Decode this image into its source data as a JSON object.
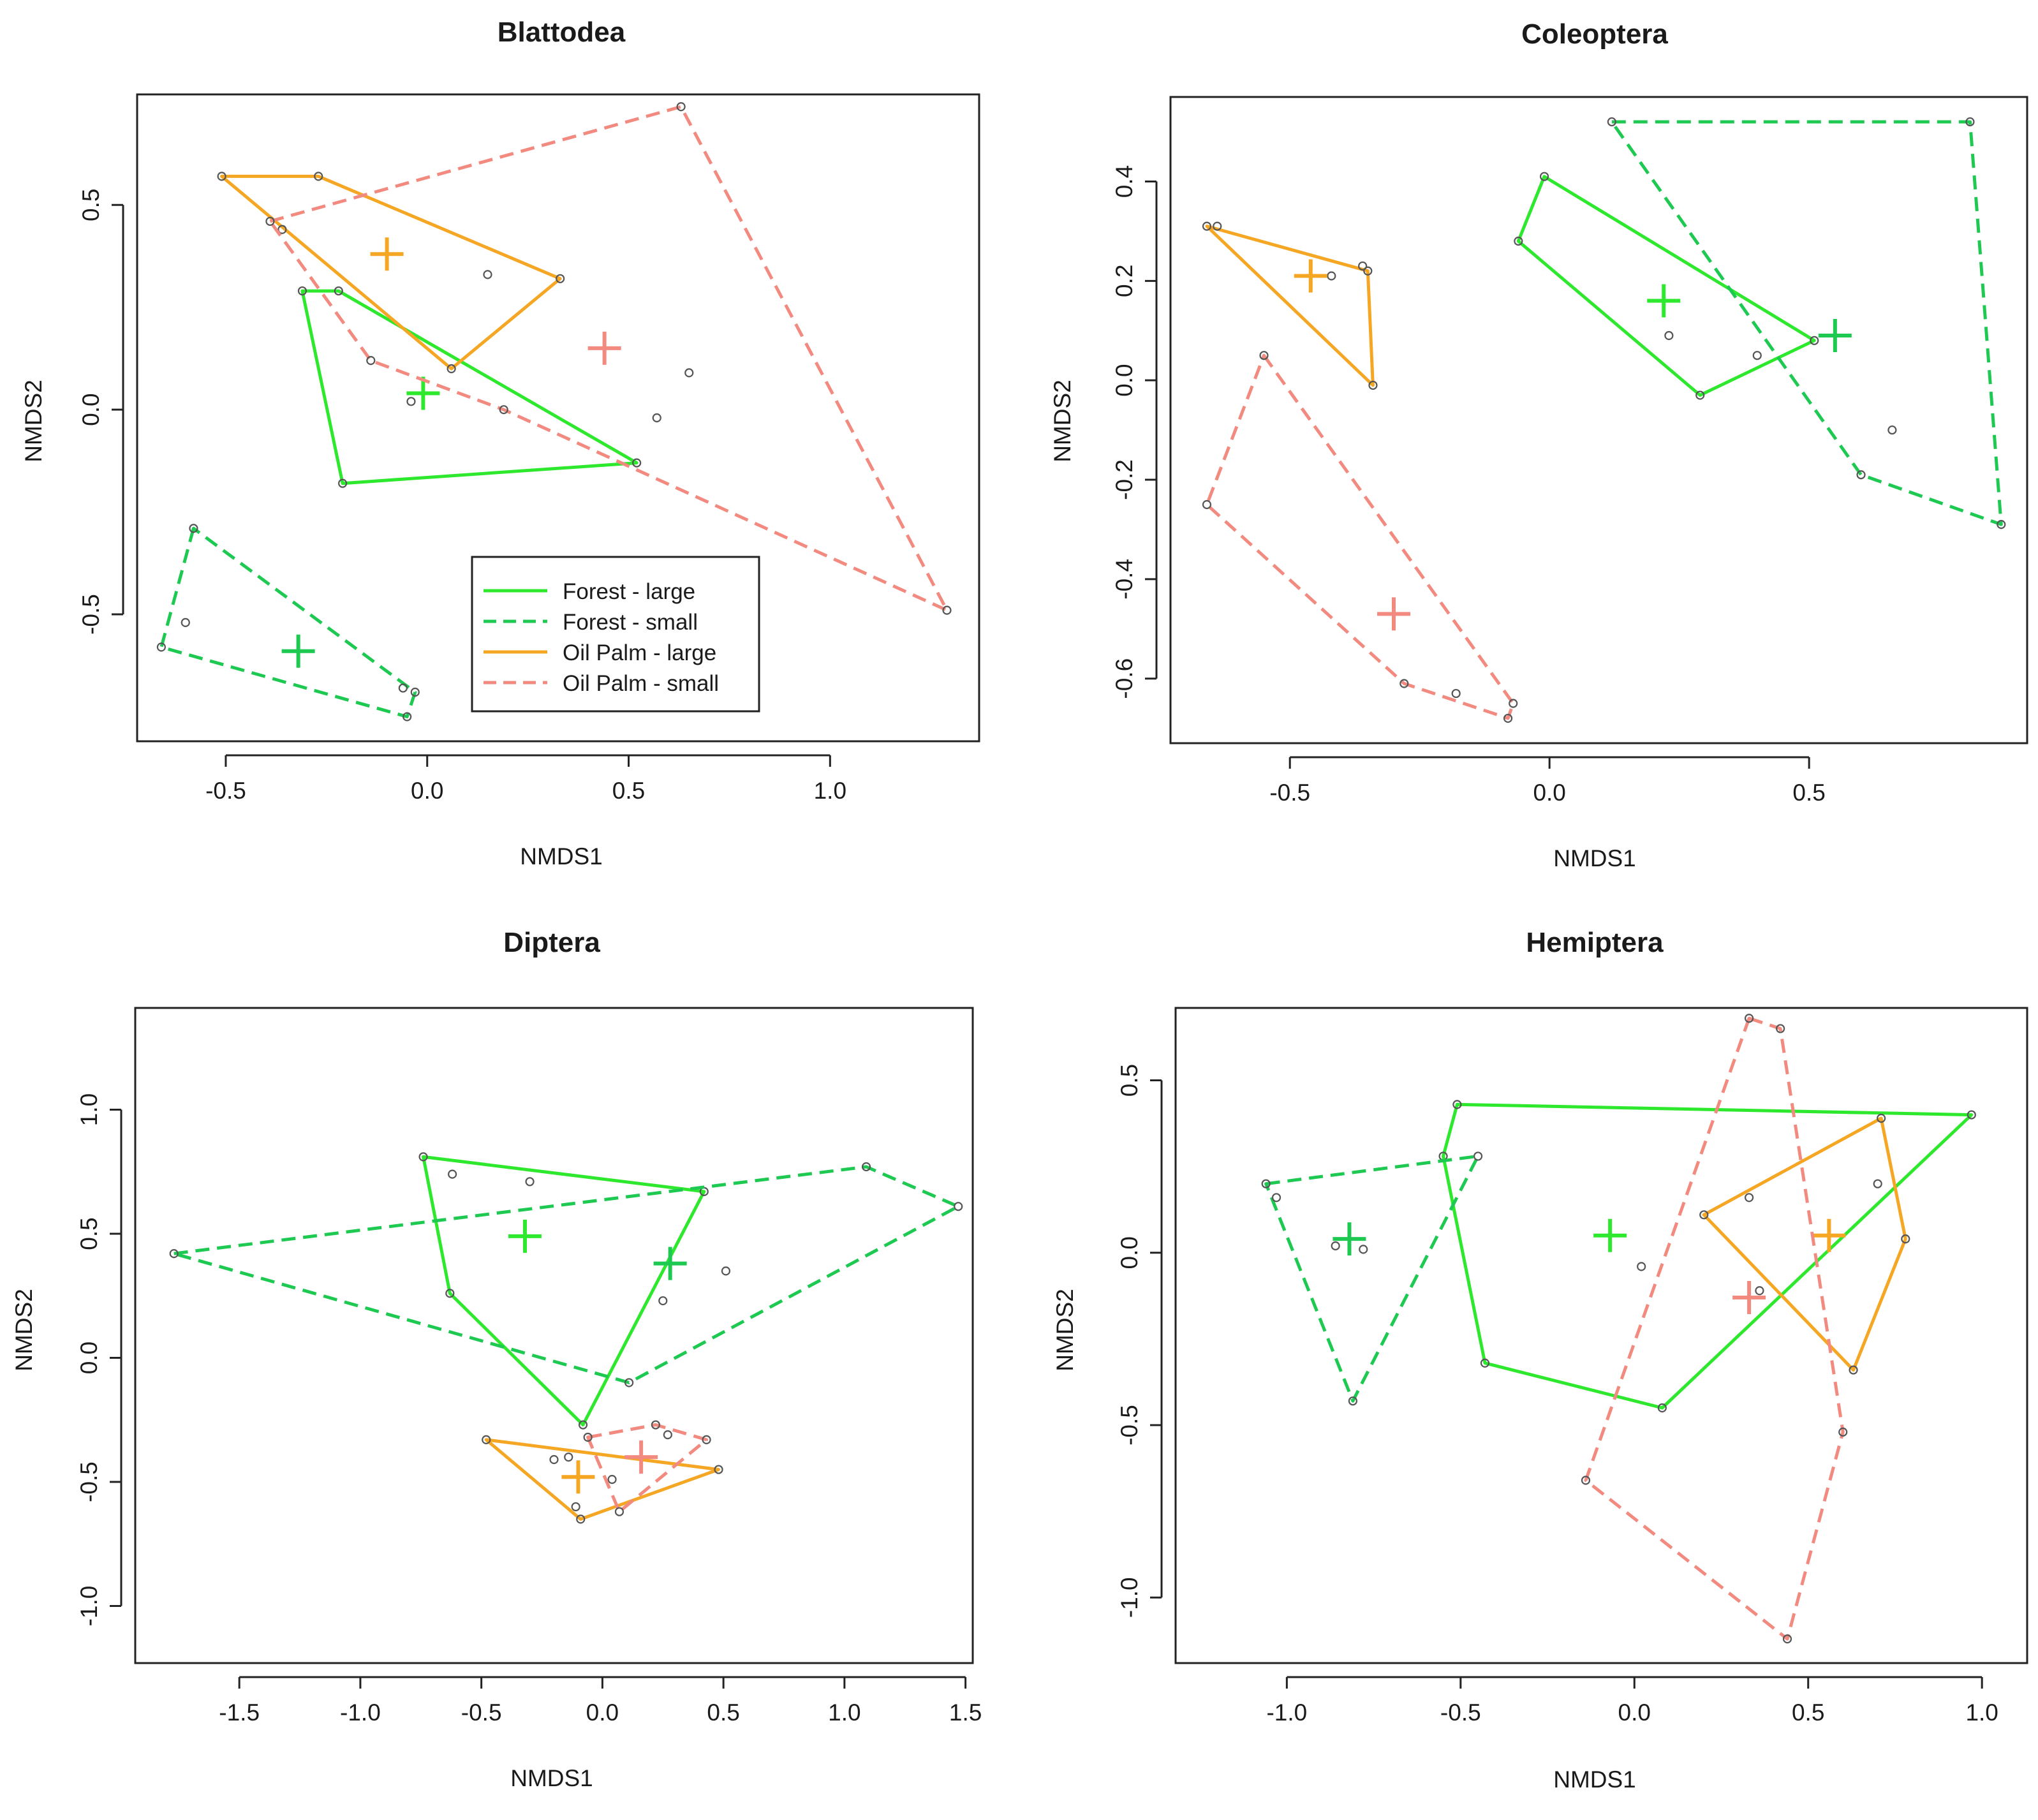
{
  "figure": {
    "colors": {
      "forest_large": "#2ee82e",
      "forest_small": "#1ec952",
      "oilpalm_large": "#f5a623",
      "oilpalm_small": "#f28a80",
      "point": "#555555",
      "frame": "#222222"
    },
    "legend": {
      "entries": [
        {
          "key": "forest_large",
          "label": "Forest - large",
          "dashed": false
        },
        {
          "key": "forest_small",
          "label": "Forest - small",
          "dashed": true
        },
        {
          "key": "oilpalm_large",
          "label": "Oil Palm - large",
          "dashed": false
        },
        {
          "key": "oilpalm_small",
          "label": "Oil Palm - small",
          "dashed": true
        }
      ]
    }
  },
  "chart_data": [
    {
      "type": "scatter",
      "title": "Blattodea",
      "xlabel": "NMDS1",
      "ylabel": "NMDS2",
      "xlim": [
        -0.72,
        1.37
      ],
      "ylim": [
        -0.81,
        0.77
      ],
      "xticks": [
        -0.5,
        0.0,
        0.5,
        1.0
      ],
      "xtick_labels": [
        "-0.5",
        "0.0",
        "0.5",
        "1.0"
      ],
      "yticks": [
        -0.5,
        0.0,
        0.5
      ],
      "ytick_labels": [
        "-0.5",
        "0.0",
        "0.5"
      ],
      "has_legend": true,
      "groups": [
        {
          "key": "forest_large",
          "hull": [
            [
              -0.31,
              0.29
            ],
            [
              -0.22,
              0.29
            ],
            [
              0.52,
              -0.13
            ],
            [
              -0.21,
              -0.18
            ]
          ],
          "centroid": [
            -0.01,
            0.04
          ],
          "points": [
            [
              -0.04,
              0.02
            ]
          ]
        },
        {
          "key": "forest_small",
          "hull": [
            [
              -0.58,
              -0.29
            ],
            [
              -0.66,
              -0.58
            ],
            [
              -0.05,
              -0.75
            ],
            [
              -0.03,
              -0.69
            ]
          ],
          "centroid": [
            -0.32,
            -0.59
          ],
          "points": [
            [
              -0.6,
              -0.52
            ],
            [
              -0.06,
              -0.68
            ]
          ]
        },
        {
          "key": "oilpalm_large",
          "hull": [
            [
              -0.51,
              0.57
            ],
            [
              -0.27,
              0.57
            ],
            [
              0.33,
              0.32
            ],
            [
              0.06,
              0.1
            ]
          ],
          "centroid": [
            -0.1,
            0.38
          ],
          "points": [
            [
              -0.36,
              0.44
            ],
            [
              0.15,
              0.33
            ]
          ]
        },
        {
          "key": "oilpalm_small",
          "hull": [
            [
              -0.39,
              0.46
            ],
            [
              0.63,
              0.74
            ],
            [
              1.29,
              -0.49
            ],
            [
              0.19,
              0.0
            ],
            [
              -0.14,
              0.12
            ]
          ],
          "centroid": [
            0.44,
            0.15
          ],
          "points": [
            [
              0.65,
              0.09
            ],
            [
              0.57,
              -0.02
            ]
          ]
        }
      ]
    },
    {
      "type": "scatter",
      "title": "Coleoptera",
      "xlabel": "NMDS1",
      "ylabel": "NMDS2",
      "xlim": [
        -0.73,
        0.92
      ],
      "ylim": [
        -0.73,
        0.57
      ],
      "xticks": [
        -0.5,
        0.0,
        0.5
      ],
      "xtick_labels": [
        "-0.5",
        "0.0",
        "0.5"
      ],
      "yticks": [
        -0.6,
        -0.4,
        -0.2,
        0.0,
        0.2,
        0.4
      ],
      "ytick_labels": [
        "-0.6",
        "-0.4",
        "-0.2",
        "0.0",
        "0.2",
        "0.4"
      ],
      "has_legend": false,
      "groups": [
        {
          "key": "forest_large",
          "hull": [
            [
              -0.06,
              0.28
            ],
            [
              -0.01,
              0.41
            ],
            [
              0.51,
              0.08
            ],
            [
              0.29,
              -0.03
            ]
          ],
          "centroid": [
            0.22,
            0.16
          ],
          "points": [
            [
              0.23,
              0.09
            ],
            [
              0.4,
              0.05
            ]
          ]
        },
        {
          "key": "forest_small",
          "hull": [
            [
              0.12,
              0.52
            ],
            [
              0.81,
              0.52
            ],
            [
              0.87,
              -0.29
            ],
            [
              0.6,
              -0.19
            ]
          ],
          "centroid": [
            0.55,
            0.09
          ],
          "points": [
            [
              0.66,
              -0.1
            ]
          ]
        },
        {
          "key": "oilpalm_large",
          "hull": [
            [
              -0.66,
              0.31
            ],
            [
              -0.35,
              0.22
            ],
            [
              -0.34,
              -0.01
            ]
          ],
          "centroid": [
            -0.46,
            0.21
          ],
          "points": [
            [
              -0.64,
              0.31
            ],
            [
              -0.42,
              0.21
            ],
            [
              -0.36,
              0.23
            ]
          ]
        },
        {
          "key": "oilpalm_small",
          "hull": [
            [
              -0.55,
              0.05
            ],
            [
              -0.07,
              -0.65
            ],
            [
              -0.08,
              -0.68
            ],
            [
              -0.28,
              -0.61
            ],
            [
              -0.66,
              -0.25
            ]
          ],
          "centroid": [
            -0.3,
            -0.47
          ],
          "points": [
            [
              -0.18,
              -0.63
            ]
          ]
        }
      ]
    },
    {
      "type": "scatter",
      "title": "Diptera",
      "xlabel": "NMDS1",
      "ylabel": "NMDS2",
      "xlim": [
        -1.93,
        1.53
      ],
      "ylim": [
        -1.23,
        1.41
      ],
      "xticks": [
        -1.5,
        -1.0,
        -0.5,
        0.0,
        0.5,
        1.0,
        1.5
      ],
      "xtick_labels": [
        "-1.5",
        "-1.0",
        "-0.5",
        "0.0",
        "0.5",
        "1.0",
        "1.5"
      ],
      "yticks": [
        -1.0,
        -0.5,
        0.0,
        0.5,
        1.0
      ],
      "ytick_labels": [
        "-1.0",
        "-0.5",
        "0.0",
        "0.5",
        "1.0"
      ],
      "has_legend": false,
      "groups": [
        {
          "key": "forest_large",
          "hull": [
            [
              -0.74,
              0.81
            ],
            [
              0.42,
              0.67
            ],
            [
              -0.08,
              -0.27
            ],
            [
              -0.63,
              0.26
            ]
          ],
          "centroid": [
            -0.32,
            0.49
          ],
          "points": [
            [
              -0.62,
              0.74
            ],
            [
              -0.3,
              0.71
            ],
            [
              0.25,
              0.23
            ],
            [
              0.51,
              0.35
            ]
          ]
        },
        {
          "key": "forest_small",
          "hull": [
            [
              -1.77,
              0.42
            ],
            [
              1.09,
              0.77
            ],
            [
              1.47,
              0.61
            ],
            [
              0.11,
              -0.1
            ]
          ],
          "centroid": [
            0.28,
            0.38
          ],
          "points": []
        },
        {
          "key": "oilpalm_large",
          "hull": [
            [
              -0.48,
              -0.33
            ],
            [
              0.48,
              -0.45
            ],
            [
              -0.09,
              -0.65
            ]
          ],
          "centroid": [
            -0.1,
            -0.48
          ],
          "points": [
            [
              -0.2,
              -0.41
            ],
            [
              -0.14,
              -0.4
            ],
            [
              0.04,
              -0.49
            ],
            [
              -0.11,
              -0.6
            ]
          ]
        },
        {
          "key": "oilpalm_small",
          "hull": [
            [
              -0.06,
              -0.32
            ],
            [
              0.22,
              -0.27
            ],
            [
              0.43,
              -0.33
            ],
            [
              0.07,
              -0.62
            ]
          ],
          "centroid": [
            0.16,
            -0.4
          ],
          "points": [
            [
              0.27,
              -0.31
            ]
          ]
        }
      ]
    },
    {
      "type": "scatter",
      "title": "Hemiptera",
      "xlabel": "NMDS1",
      "ylabel": "NMDS2",
      "xlim": [
        -1.32,
        1.13
      ],
      "ylim": [
        -1.19,
        0.71
      ],
      "xticks": [
        -1.0,
        -0.5,
        0.0,
        0.5,
        1.0
      ],
      "xtick_labels": [
        "-1.0",
        "-0.5",
        "0.0",
        "0.5",
        "1.0"
      ],
      "yticks": [
        -1.0,
        -0.5,
        0.0,
        0.5
      ],
      "ytick_labels": [
        "-1.0",
        "-0.5",
        "0.0",
        "0.5"
      ],
      "has_legend": false,
      "groups": [
        {
          "key": "forest_large",
          "hull": [
            [
              -0.51,
              0.43
            ],
            [
              0.97,
              0.4
            ],
            [
              0.08,
              -0.45
            ],
            [
              -0.43,
              -0.32
            ],
            [
              -0.55,
              0.28
            ]
          ],
          "centroid": [
            -0.07,
            0.05
          ],
          "points": [
            [
              0.02,
              -0.04
            ]
          ]
        },
        {
          "key": "forest_small",
          "hull": [
            [
              -1.06,
              0.2
            ],
            [
              -0.45,
              0.28
            ],
            [
              -0.81,
              -0.43
            ]
          ],
          "centroid": [
            -0.82,
            0.04
          ],
          "points": [
            [
              -1.03,
              0.16
            ],
            [
              -0.86,
              0.02
            ],
            [
              -0.78,
              0.01
            ]
          ]
        },
        {
          "key": "oilpalm_large",
          "hull": [
            [
              0.2,
              0.11
            ],
            [
              0.71,
              0.39
            ],
            [
              0.78,
              0.04
            ],
            [
              0.63,
              -0.34
            ]
          ],
          "centroid": [
            0.56,
            0.05
          ],
          "points": [
            [
              0.33,
              0.16
            ],
            [
              0.7,
              0.2
            ],
            [
              0.36,
              -0.11
            ]
          ]
        },
        {
          "key": "oilpalm_small",
          "hull": [
            [
              0.33,
              0.68
            ],
            [
              0.42,
              0.65
            ],
            [
              0.6,
              -0.52
            ],
            [
              0.44,
              -1.12
            ],
            [
              -0.14,
              -0.66
            ]
          ],
          "centroid": [
            0.33,
            -0.13
          ],
          "points": []
        }
      ]
    }
  ]
}
